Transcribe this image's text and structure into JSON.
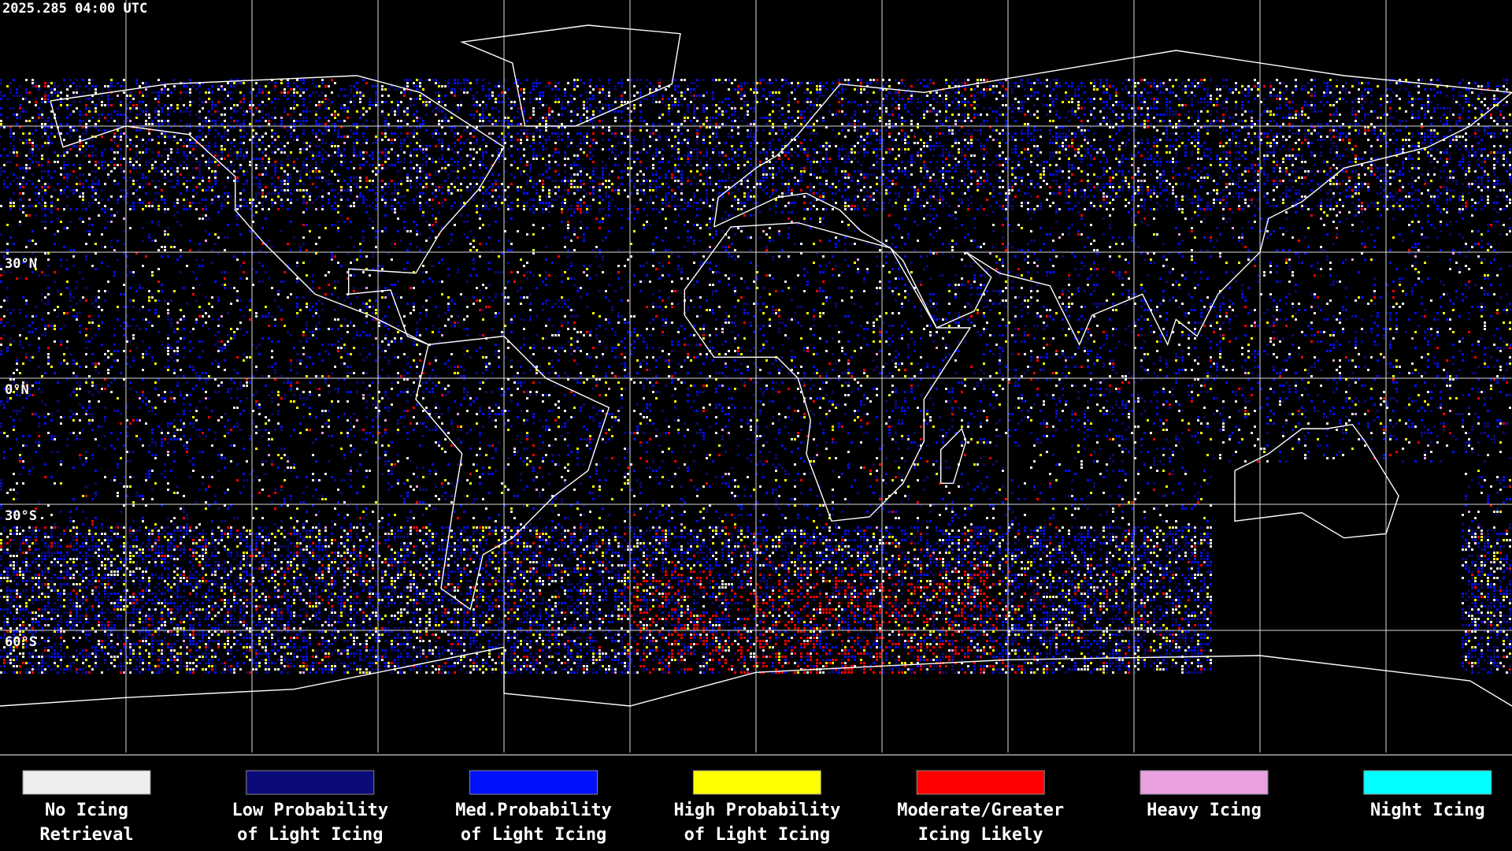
{
  "timestamp": "2025.285 04:00 UTC",
  "lat_labels": [
    "30°N",
    "0°N",
    "30°S",
    "60°S"
  ],
  "legend": [
    {
      "lines": [
        "No Icing",
        "Retrieval"
      ],
      "color": "#eeeeee"
    },
    {
      "lines": [
        "Low Probability",
        "of Light Icing"
      ],
      "color": "#0a0a78"
    },
    {
      "lines": [
        "Med.Probability",
        "of Light Icing"
      ],
      "color": "#0010ff"
    },
    {
      "lines": [
        "High Probability",
        "of Light Icing"
      ],
      "color": "#ffff00"
    },
    {
      "lines": [
        "Moderate/Greater",
        "Icing Likely"
      ],
      "color": "#ff0000"
    },
    {
      "lines": [
        "Heavy Icing"
      ],
      "color": "#e8a0e0"
    },
    {
      "lines": [
        "Night Icing"
      ],
      "color": "#00ffff"
    }
  ]
}
